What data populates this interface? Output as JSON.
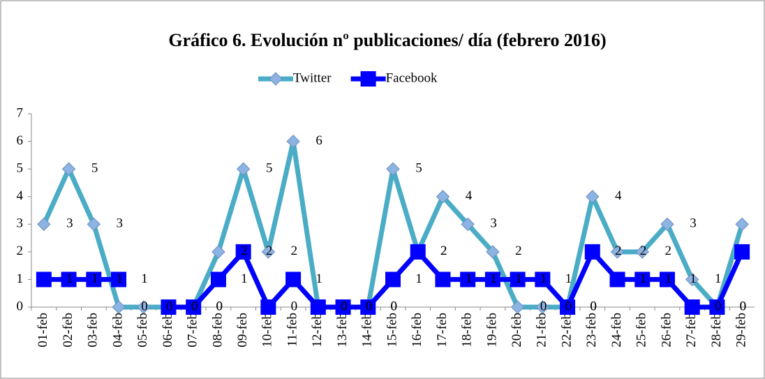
{
  "chart_data": {
    "type": "line",
    "title": "Gráfico 6. Evolución nº publicaciones/ día (febrero 2016)",
    "categories": [
      "01-feb",
      "02-feb",
      "03-feb",
      "04-feb",
      "05-feb",
      "06-feb",
      "07-feb",
      "08-feb",
      "09-feb",
      "10-feb",
      "11-feb",
      "12-feb",
      "13-feb",
      "14-feb",
      "15-feb",
      "16-feb",
      "17-feb",
      "18-feb",
      "19-feb",
      "20-feb",
      "21-feb",
      "22-feb",
      "23-feb",
      "24-feb",
      "25-feb",
      "26-feb",
      "27-feb",
      "28-feb",
      "29-feb"
    ],
    "series": [
      {
        "name": "Twitter",
        "color": "#4bacc6",
        "marker_color": "#8db3e2",
        "marker": "diamond",
        "values": [
          3,
          5,
          3,
          0,
          0,
          0,
          0,
          2,
          5,
          2,
          6,
          0,
          0,
          0,
          5,
          2,
          4,
          3,
          2,
          0,
          0,
          0,
          4,
          2,
          2,
          3,
          1,
          0,
          3
        ]
      },
      {
        "name": "Facebook",
        "color": "#0000ff",
        "marker_color": "#0000ff",
        "marker": "square",
        "values": [
          1,
          1,
          1,
          1,
          null,
          0,
          0,
          1,
          2,
          0,
          1,
          0,
          0,
          0,
          1,
          2,
          1,
          1,
          1,
          1,
          1,
          0,
          2,
          1,
          1,
          1,
          0,
          0,
          2
        ]
      }
    ],
    "ylim": [
      0,
      7
    ],
    "yticks": [
      0,
      1,
      2,
      3,
      4,
      5,
      6,
      7
    ],
    "legend": "top",
    "data_labels": true
  }
}
